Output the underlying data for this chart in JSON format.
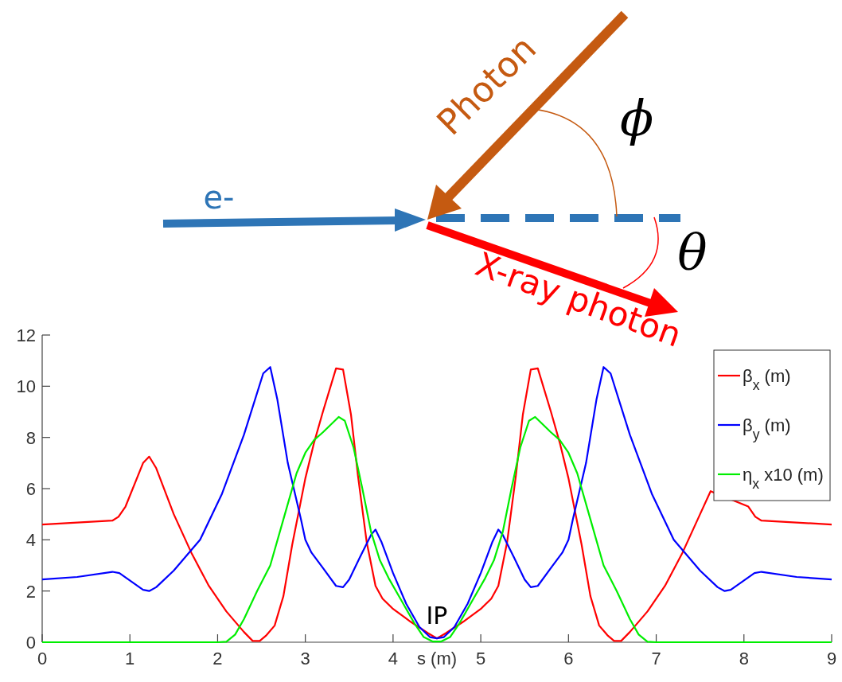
{
  "chart_data": {
    "type": "line",
    "xlabel": "s (m)",
    "xlim": [
      0,
      9
    ],
    "xticks": [
      0,
      1,
      2,
      3,
      4,
      5,
      6,
      7,
      8,
      9
    ],
    "ylim": [
      0,
      12
    ],
    "yticks": [
      0,
      2,
      4,
      6,
      8,
      10,
      12
    ],
    "grid": false,
    "legend": "top right",
    "marker": "none",
    "line_style": "solid",
    "series": [
      {
        "name": "β$_{x}$ (m)",
        "color": "#ff0000",
        "x": [
          0,
          0.8,
          0.87,
          0.95,
          1.15,
          1.22,
          1.3,
          1.5,
          1.7,
          1.9,
          2.1,
          2.3,
          2.4,
          2.48,
          2.55,
          2.65,
          2.75,
          2.85,
          3.0,
          3.1,
          3.2,
          3.35,
          3.43,
          3.52,
          3.6,
          3.7,
          3.8,
          3.88,
          4.0,
          4.2,
          4.4,
          4.5,
          4.6,
          4.8,
          5.0,
          5.12,
          5.2,
          5.3,
          5.4,
          5.48,
          5.57,
          5.65,
          5.8,
          5.9,
          6.0,
          6.15,
          6.25,
          6.35,
          6.45,
          6.52,
          6.6,
          6.7,
          6.9,
          7.1,
          7.3,
          7.5,
          7.62,
          8.05,
          8.13,
          8.2,
          9
        ],
        "values": [
          4.6,
          4.75,
          4.9,
          5.3,
          7.0,
          7.25,
          6.8,
          5.0,
          3.5,
          2.2,
          1.2,
          0.4,
          0.05,
          0.05,
          0.25,
          0.65,
          1.8,
          3.8,
          6.4,
          7.8,
          9.0,
          10.7,
          10.65,
          8.9,
          6.5,
          3.9,
          2.2,
          1.7,
          1.3,
          0.8,
          0.35,
          0.15,
          0.35,
          0.8,
          1.3,
          1.7,
          2.2,
          3.9,
          6.5,
          8.9,
          10.65,
          10.7,
          9.0,
          7.8,
          6.4,
          3.8,
          1.8,
          0.65,
          0.25,
          0.05,
          0.05,
          0.4,
          1.2,
          2.2,
          3.5,
          5.0,
          5.9,
          5.3,
          4.9,
          4.75,
          4.6
        ]
      },
      {
        "name": "β$_{y}$ (m)",
        "color": "#0000ff",
        "x": [
          0,
          0.4,
          0.8,
          0.88,
          1.15,
          1.22,
          1.3,
          1.5,
          1.8,
          2.05,
          2.3,
          2.52,
          2.6,
          2.68,
          2.8,
          2.95,
          3.0,
          3.07,
          3.2,
          3.35,
          3.43,
          3.5,
          3.62,
          3.75,
          3.8,
          3.87,
          4.0,
          4.15,
          4.3,
          4.42,
          4.5,
          4.58,
          4.7,
          4.85,
          5.0,
          5.13,
          5.2,
          5.25,
          5.38,
          5.5,
          5.57,
          5.65,
          5.8,
          5.93,
          6.0,
          6.05,
          6.2,
          6.32,
          6.4,
          6.48,
          6.7,
          6.95,
          7.2,
          7.5,
          7.7,
          7.78,
          7.85,
          8.12,
          8.2,
          8.6,
          9
        ],
        "values": [
          2.45,
          2.55,
          2.75,
          2.7,
          2.05,
          2.0,
          2.15,
          2.8,
          4.0,
          5.8,
          8.1,
          10.5,
          10.75,
          9.5,
          7.0,
          4.8,
          4.0,
          3.5,
          2.9,
          2.2,
          2.15,
          2.45,
          3.3,
          4.2,
          4.4,
          3.9,
          2.7,
          1.5,
          0.6,
          0.2,
          0.15,
          0.2,
          0.6,
          1.5,
          2.7,
          3.9,
          4.4,
          4.2,
          3.3,
          2.45,
          2.15,
          2.2,
          2.9,
          3.5,
          4.0,
          4.8,
          7.0,
          9.5,
          10.75,
          10.5,
          8.1,
          5.8,
          4.0,
          2.8,
          2.15,
          2.0,
          2.05,
          2.7,
          2.75,
          2.55,
          2.45
        ]
      },
      {
        "name": "η$_{x}$ x10 (m)",
        "color": "#00ee00",
        "x": [
          0,
          2.0,
          2.1,
          2.2,
          2.3,
          2.45,
          2.6,
          2.75,
          2.9,
          3.0,
          3.1,
          3.2,
          3.38,
          3.45,
          3.55,
          3.65,
          3.75,
          3.85,
          3.95,
          4.1,
          4.25,
          4.35,
          4.45,
          4.55,
          4.65,
          4.75,
          4.9,
          5.05,
          5.15,
          5.25,
          5.35,
          5.45,
          5.55,
          5.62,
          5.8,
          5.9,
          6.0,
          6.1,
          6.25,
          6.4,
          6.55,
          6.7,
          6.8,
          6.9,
          7.0,
          9
        ],
        "values": [
          0,
          0,
          0.02,
          0.3,
          0.9,
          2.0,
          3.0,
          4.8,
          6.6,
          7.4,
          7.9,
          8.2,
          8.8,
          8.65,
          7.6,
          6.0,
          4.3,
          3.2,
          2.5,
          1.6,
          0.7,
          0.2,
          0.03,
          0.03,
          0.2,
          0.7,
          1.6,
          2.5,
          3.2,
          4.3,
          6.0,
          7.6,
          8.65,
          8.8,
          8.2,
          7.9,
          7.4,
          6.6,
          4.8,
          3.0,
          2.0,
          0.9,
          0.3,
          0.02,
          0,
          0
        ]
      }
    ],
    "annotations": [
      {
        "text": "IP",
        "x": 4.5,
        "y": 0.15
      },
      "e-",
      "Photon",
      "X-ray photon",
      "ϕ",
      "θ"
    ]
  }
}
